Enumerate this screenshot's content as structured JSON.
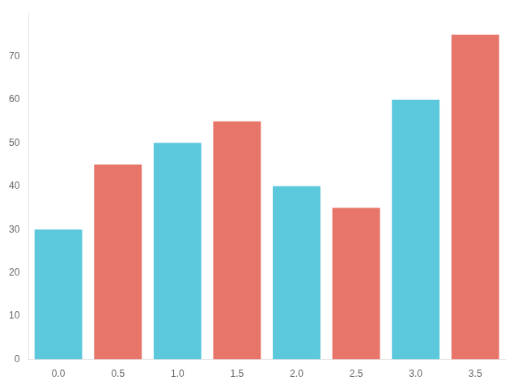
{
  "chart_data": {
    "type": "bar",
    "categories": [
      "0.0",
      "0.5",
      "1.0",
      "1.5",
      "2.0",
      "2.5",
      "3.0",
      "3.5"
    ],
    "series": [
      {
        "color": "#5BC8DC",
        "values": [
          30,
          null,
          50,
          null,
          40,
          null,
          60,
          null
        ]
      },
      {
        "color": "#E8756A",
        "values": [
          null,
          45,
          null,
          55,
          null,
          35,
          null,
          75
        ]
      }
    ],
    "ylim": [
      0,
      80
    ],
    "yticks": [
      0,
      10,
      20,
      30,
      40,
      50,
      60,
      70
    ],
    "grid": false
  }
}
